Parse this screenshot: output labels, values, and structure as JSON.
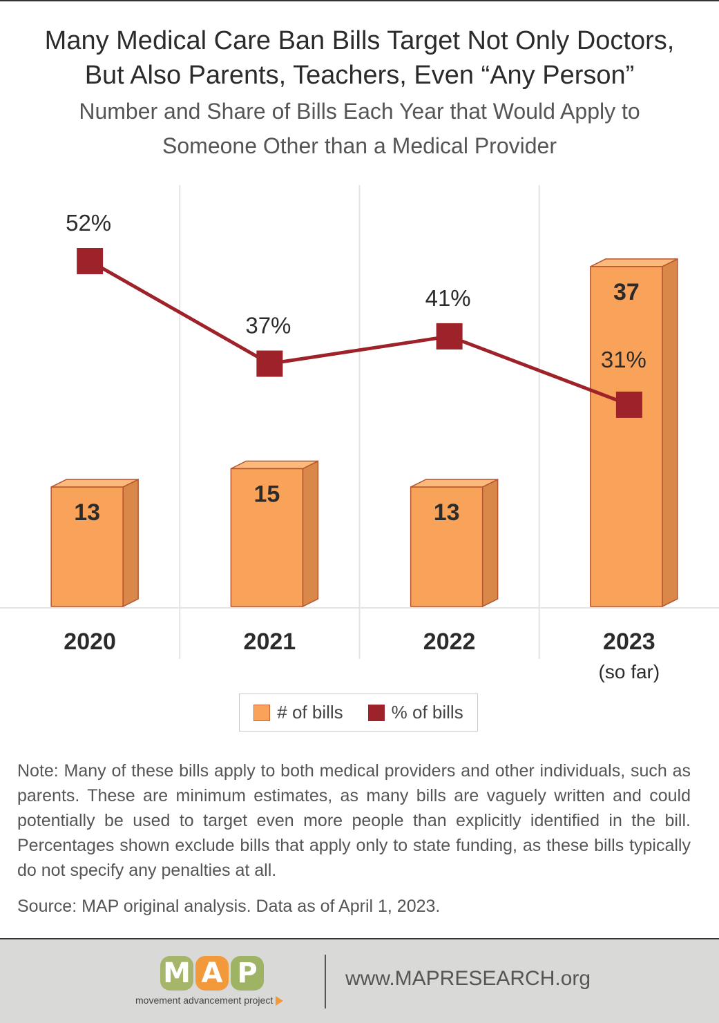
{
  "title_lines": [
    "Many Medical Care Ban Bills Target Not Only Doctors,",
    "But Also Parents, Teachers, Even “Any Person”"
  ],
  "subtitle_lines": [
    "Number and Share of Bills Each Year that Would Apply to",
    "Someone Other than a Medical Provider"
  ],
  "chart_data": {
    "type": "bar",
    "categories": [
      "2020",
      "2021",
      "2022",
      "2023"
    ],
    "category_sublabels": [
      "",
      "",
      "",
      "(so far)"
    ],
    "series": [
      {
        "name": "# of bills",
        "type": "bar",
        "values": [
          13,
          15,
          13,
          37
        ],
        "labels": [
          "13",
          "15",
          "13",
          "37"
        ],
        "color": "#f9a35a"
      },
      {
        "name": "% of bills",
        "type": "line",
        "values": [
          52,
          37,
          41,
          31
        ],
        "labels": [
          "52%",
          "37%",
          "41%",
          "31%"
        ],
        "color": "#9e2229"
      }
    ],
    "grid": true,
    "legend": "bottom-center"
  },
  "legend": {
    "bills_label": "# of bills",
    "pct_label": "% of bills"
  },
  "note": "Note: Many of these bills apply to both medical providers and other individuals, such as parents. These are minimum estimates, as many bills are vaguely written and could potentially be used to target even more people than explicitly identified in the bill. Percentages shown exclude bills that apply only to state funding, as these bills typically do not specify any penalties at all.",
  "source": "Source: MAP original analysis. Data as of April 1, 2023.",
  "footer": {
    "logo_letters": [
      "M",
      "A",
      "P"
    ],
    "logo_tagline": "movement advancement project",
    "url": "www.MAPRESEARCH.org"
  },
  "colors": {
    "bar_front": "#f9a35a",
    "bar_side": "#d9884a",
    "bar_stroke": "#b5552e",
    "line": "#9e2229",
    "logo_orange": "#f29a3b",
    "logo_green": "#a5b56a"
  }
}
